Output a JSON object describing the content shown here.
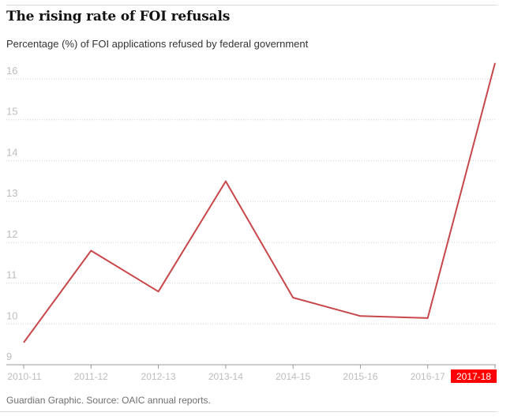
{
  "chart_data": {
    "type": "line",
    "title": "The rising rate of FOI refusals",
    "subtitle": "Percentage (%) of FOI applications refused by federal government",
    "categories": [
      "2010-11",
      "2011-12",
      "2012-13",
      "2013-14",
      "2014-15",
      "2015-16",
      "2016-17",
      "2017-18"
    ],
    "series": [
      {
        "values": [
          9.35,
          11.6,
          10.6,
          13.3,
          10.45,
          10.0,
          9.95,
          16.2
        ]
      }
    ],
    "y_ticks": [
      "9",
      "10",
      "11",
      "12",
      "13",
      "14",
      "15",
      "16"
    ],
    "ylim": [
      9,
      16
    ],
    "highlighted_category": "2017-18",
    "grid": true,
    "colors": {
      "line": "#c7474a",
      "highlight": "#ff0000",
      "tick_text": "#bdbdbd",
      "grid": "#cfcfcf"
    }
  },
  "footer": {
    "source": "Guardian Graphic. Source: OAIC annual reports."
  }
}
